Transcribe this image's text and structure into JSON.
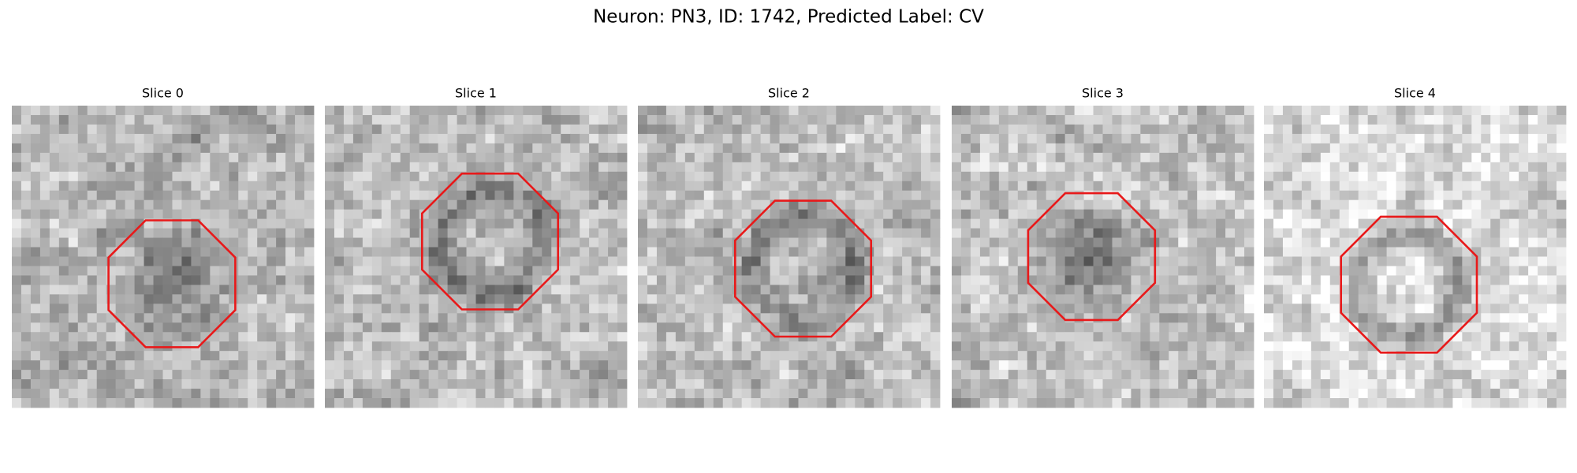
{
  "title": "Neuron: PN3, ID: 1742, Predicted Label: CV",
  "panels": [
    {
      "title": "Slice 0"
    },
    {
      "title": "Slice 1"
    },
    {
      "title": "Slice 2"
    },
    {
      "title": "Slice 3"
    },
    {
      "title": "Slice 4"
    }
  ]
}
